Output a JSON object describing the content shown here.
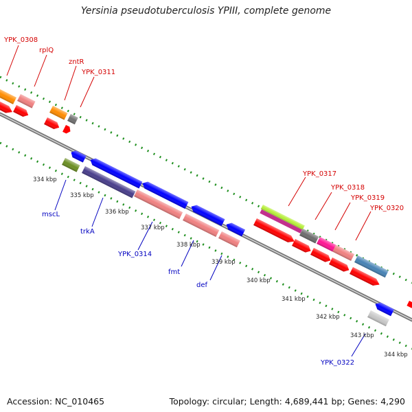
{
  "title": "Yersinia pseudotuberculosis YPIII, complete genome",
  "footer": {
    "accession": "Accession: NC_010465",
    "topology": "Topology: circular; Length: 4,689,441 bp; Genes: 4,290"
  },
  "kbp_ticks": [
    "334 kbp",
    "335 kbp",
    "336 kbp",
    "337 kbp",
    "338 kbp",
    "339 kbp",
    "340 kbp",
    "341 kbp",
    "342 kbp",
    "343 kbp",
    "344 kbp"
  ],
  "genes_top": [
    "YPK_0308",
    "rplQ",
    "zntR",
    "YPK_0311",
    "YPK_0317",
    "YPK_0318",
    "YPK_0319",
    "YPK_0320"
  ],
  "genes_bottom": [
    "mscL",
    "trkA",
    "YPK_0314",
    "fmt",
    "def",
    "YPK_0322"
  ],
  "colors": {
    "label_forward": "#d40000",
    "label_reverse": "#0000c0",
    "cds": "#ff0000",
    "reverse_cds": "#0000ff",
    "dots": "#1e8f1e",
    "backbone": "#777777"
  }
}
